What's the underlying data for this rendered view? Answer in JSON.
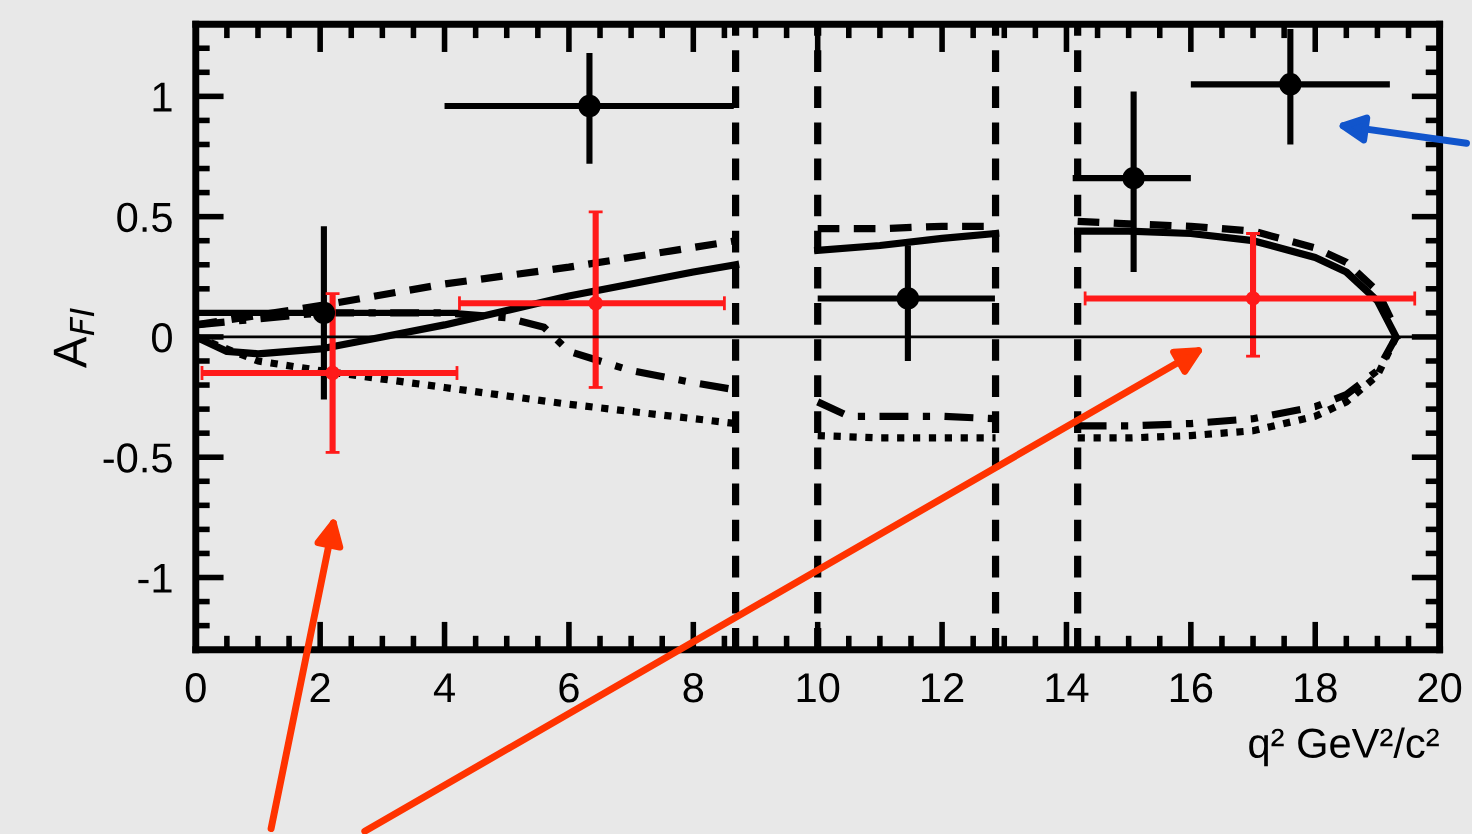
{
  "chart_data": {
    "type": "scatter",
    "xlabel": "q² GeV²/c²",
    "ylabel": "A$_{FI}$",
    "xlim": [
      0,
      20
    ],
    "ylim": [
      -1.3,
      1.3
    ],
    "xticks": [
      0,
      2,
      4,
      6,
      8,
      10,
      12,
      14,
      16,
      18,
      20
    ],
    "yticks": [
      -1,
      -0.5,
      0,
      0.5,
      1
    ],
    "grid": false,
    "legend": false,
    "ref_lines": [
      {
        "axis": "y",
        "value": 0,
        "color": "#000000",
        "line_style": "solid"
      },
      {
        "axis": "x",
        "value": 8.68,
        "color": "#000000",
        "line_style": "dashed"
      },
      {
        "axis": "x",
        "value": 10.0,
        "color": "#000000",
        "line_style": "dashed"
      },
      {
        "axis": "x",
        "value": 12.86,
        "color": "#000000",
        "line_style": "dashed"
      },
      {
        "axis": "x",
        "value": 14.18,
        "color": "#000000",
        "line_style": "dashed"
      }
    ],
    "series": [
      {
        "type": "line",
        "color": "#000000",
        "line_style": "solid",
        "x": [
          0,
          0.5,
          1,
          2,
          3,
          4,
          5,
          6,
          7,
          8,
          8.68,
          9.3,
          10,
          11,
          12,
          12.86,
          13.5,
          14.18,
          15,
          16,
          17,
          18,
          18.5,
          19,
          19.3
        ],
        "values": [
          0,
          -0.06,
          -0.07,
          -0.05,
          0,
          0.05,
          0.11,
          0.17,
          0.22,
          0.27,
          0.3,
          null,
          0.36,
          0.38,
          0.41,
          0.43,
          null,
          0.44,
          0.44,
          0.43,
          0.4,
          0.33,
          0.27,
          0.15,
          0
        ]
      },
      {
        "type": "line",
        "color": "#000000",
        "line_style": "dashed",
        "x": [
          0,
          2,
          4,
          6,
          8.68,
          9.3,
          10,
          11,
          12,
          12.86,
          13.5,
          14.18,
          15,
          16,
          17,
          18,
          18.5,
          19,
          19.3
        ],
        "values": [
          0.05,
          0.13,
          0.22,
          0.29,
          0.4,
          null,
          0.45,
          0.45,
          0.46,
          0.46,
          null,
          0.48,
          0.47,
          0.46,
          0.44,
          0.37,
          0.31,
          0.19,
          0.03
        ]
      },
      {
        "type": "line",
        "color": "#000000",
        "line_style": "dotted",
        "x": [
          0,
          1,
          2,
          4,
          6,
          8.68,
          9.3,
          10,
          11,
          12,
          12.86,
          13.5,
          14.18,
          15,
          16,
          17,
          18,
          18.5,
          19,
          19.3
        ],
        "values": [
          0,
          -0.1,
          -0.14,
          -0.21,
          -0.28,
          -0.36,
          null,
          -0.41,
          -0.42,
          -0.42,
          -0.42,
          null,
          -0.42,
          -0.42,
          -0.41,
          -0.39,
          -0.33,
          -0.27,
          -0.16,
          0
        ]
      },
      {
        "type": "line",
        "color": "#000000",
        "line_style": "dashdot",
        "x": [
          0,
          2,
          4,
          5,
          5.6,
          6,
          7,
          8,
          8.68,
          9.3,
          10,
          10.5,
          11,
          12,
          12.86,
          13.5,
          14.18,
          15,
          16,
          17,
          18,
          18.5,
          19,
          19.3
        ],
        "values": [
          0.05,
          0.1,
          0.1,
          0.08,
          0.04,
          -0.06,
          -0.14,
          -0.19,
          -0.22,
          null,
          -0.27,
          -0.33,
          -0.33,
          -0.33,
          -0.34,
          null,
          -0.37,
          -0.37,
          -0.36,
          -0.34,
          -0.29,
          -0.24,
          -0.14,
          0
        ]
      },
      {
        "type": "scatter",
        "color": "#000000",
        "marker": "circle",
        "x": [
          2.06,
          6.33,
          11.45,
          15.08,
          17.6
        ],
        "values": [
          0.1,
          0.96,
          0.16,
          0.66,
          1.05
        ],
        "errors": [
          [
            -0.26,
            0.46
          ],
          [
            0.72,
            1.18
          ],
          [
            -0.1,
            0.38
          ],
          [
            0.27,
            1.02
          ],
          [
            0.8,
            1.28
          ]
        ],
        "xerrors": [
          [
            0,
            4.24
          ],
          [
            4.0,
            8.65
          ],
          [
            10.0,
            12.85
          ],
          [
            14.1,
            16.0
          ],
          [
            16.0,
            19.2
          ]
        ]
      },
      {
        "color": "#ff1a1a",
        "marker": "circle",
        "x": [
          2.2,
          6.43,
          17.0
        ],
        "values": [
          -0.15,
          0.14,
          0.16
        ],
        "errors": [
          [
            -0.48,
            0.18
          ],
          [
            -0.21,
            0.52
          ],
          [
            -0.08,
            0.43
          ]
        ],
        "xerrors": [
          [
            0.1,
            4.2
          ],
          [
            4.24,
            8.5
          ],
          [
            14.3,
            19.6
          ]
        ]
      }
    ]
  }
}
